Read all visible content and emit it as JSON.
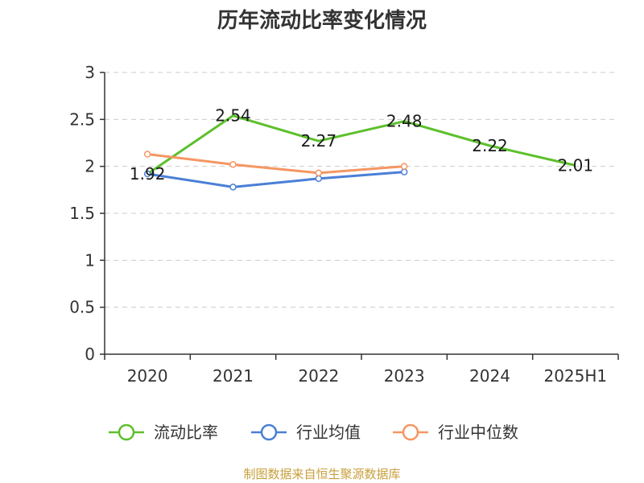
{
  "chart_data": {
    "type": "line",
    "title": "历年流动比率变化情况",
    "categories": [
      "2020",
      "2021",
      "2022",
      "2023",
      "2024",
      "2025H1"
    ],
    "ylim": [
      0,
      3
    ],
    "yticks": [
      0,
      0.5,
      1,
      1.5,
      2,
      2.5,
      3
    ],
    "grid": true,
    "legend_position": "bottom",
    "series": [
      {
        "name": "流动比率",
        "color": "#5cc02c",
        "values": [
          1.92,
          2.54,
          2.27,
          2.48,
          2.22,
          2.01
        ],
        "labels": [
          "1.92",
          "2.54",
          "2.27",
          "2.48",
          "2.22",
          "2.01"
        ]
      },
      {
        "name": "行业均值",
        "color": "#4a7fd6",
        "values": [
          1.92,
          1.78,
          1.87,
          1.94,
          null,
          null
        ]
      },
      {
        "name": "行业中位数",
        "color": "#f59662",
        "values": [
          2.13,
          2.02,
          1.93,
          2.0,
          null,
          null
        ]
      }
    ]
  },
  "source": "制图数据来自恒生聚源数据库"
}
